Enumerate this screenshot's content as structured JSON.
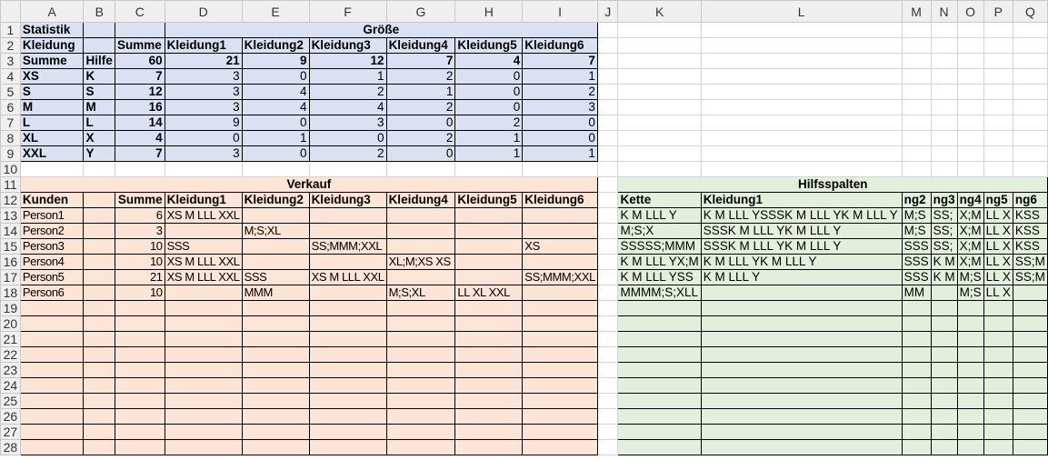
{
  "sheet": {
    "columns": [
      "A",
      "B",
      "C",
      "D",
      "E",
      "F",
      "G",
      "H",
      "I",
      "J",
      "K",
      "L",
      "M",
      "N",
      "O",
      "P",
      "Q"
    ],
    "row_numbers": [
      "1",
      "2",
      "3",
      "4",
      "5",
      "6",
      "7",
      "8",
      "9",
      "10",
      "11",
      "12",
      "13",
      "14",
      "15",
      "16",
      "17",
      "18",
      "19",
      "20",
      "21",
      "22",
      "23",
      "24",
      "25",
      "26",
      "27",
      "28"
    ],
    "colors": {
      "statistik_bg": "#D9E1F2",
      "verkauf_bg": "#FCE4D6",
      "hilfsspalten_bg": "#E2EFDA"
    },
    "rows": [
      [
        "Statistik",
        "",
        "",
        "Größe",
        "",
        "",
        "",
        "",
        "",
        "",
        "",
        "",
        "",
        "",
        "",
        "",
        ""
      ],
      [
        "Kleidung",
        "",
        "Summe",
        "Kleidung1",
        "Kleidung2",
        "Kleidung3",
        "Kleidung4",
        "Kleidung5",
        "Kleidung6",
        "",
        "",
        "",
        "",
        "",
        "",
        "",
        ""
      ],
      [
        "Summe",
        "Hilfe",
        "60",
        "21",
        "9",
        "12",
        "7",
        "4",
        "7",
        "",
        "",
        "",
        "",
        "",
        "",
        "",
        ""
      ],
      [
        "XS",
        "K",
        "7",
        "3",
        "0",
        "1",
        "2",
        "0",
        "1",
        "",
        "",
        "",
        "",
        "",
        "",
        "",
        ""
      ],
      [
        "S",
        "S",
        "12",
        "3",
        "4",
        "2",
        "1",
        "0",
        "2",
        "",
        "",
        "",
        "",
        "",
        "",
        "",
        ""
      ],
      [
        "M",
        "M",
        "16",
        "3",
        "4",
        "4",
        "2",
        "0",
        "3",
        "",
        "",
        "",
        "",
        "",
        "",
        "",
        ""
      ],
      [
        "L",
        "L",
        "14",
        "9",
        "0",
        "3",
        "0",
        "2",
        "0",
        "",
        "",
        "",
        "",
        "",
        "",
        "",
        ""
      ],
      [
        "XL",
        "X",
        "4",
        "0",
        "1",
        "0",
        "2",
        "1",
        "0",
        "",
        "",
        "",
        "",
        "",
        "",
        "",
        ""
      ],
      [
        "XXL",
        "Y",
        "7",
        "3",
        "0",
        "2",
        "0",
        "1",
        "1",
        "",
        "",
        "",
        "",
        "",
        "",
        "",
        ""
      ],
      [
        "",
        "",
        "",
        "",
        "",
        "",
        "",
        "",
        "",
        "",
        "",
        "",
        "",
        "",
        "",
        "",
        ""
      ],
      [
        "Verkauf",
        "",
        "",
        "",
        "",
        "",
        "",
        "",
        "",
        "",
        "Hilfsspalten",
        "",
        "",
        "",
        "",
        "",
        ""
      ],
      [
        "Kunden",
        "",
        "Summe",
        "Kleidung1",
        "Kleidung2",
        "Kleidung3",
        "Kleidung4",
        "Kleidung5",
        "Kleidung6",
        "",
        "Kette",
        "Kleidung1",
        "ng2",
        "ng3",
        "ng4",
        "ng5",
        "ng6"
      ],
      [
        "Person1",
        "",
        "6",
        "XS M LLL XXL",
        "",
        "",
        "",
        "",
        "",
        "",
        "K M LLL Y",
        "K M LLL YSSSK M LLL YK M LLL Y",
        "M;S",
        "SS;",
        "X;M",
        "LL X",
        "KSS"
      ],
      [
        "Person2",
        "",
        "3",
        "",
        "M;S;XL",
        "",
        "",
        "",
        "",
        "",
        "M;S;X",
        "SSSK M LLL YK M LLL Y",
        "M;S",
        "SS;",
        "X;M",
        "LL X",
        "KSS"
      ],
      [
        "Person3",
        "",
        "10",
        "SSS",
        "",
        "SS;MMM;XXL",
        "",
        "",
        "XS",
        "",
        "SSSSS;MMM",
        "SSSK M LLL YK M LLL Y",
        "SSS",
        "SS;",
        "X;M",
        "LL X",
        "KSS"
      ],
      [
        "Person4",
        "",
        "10",
        "XS M LLL XXL",
        "",
        "",
        "XL;M;XS XS",
        "",
        "",
        "",
        "K M LLL YX;M",
        "K M LLL YK M LLL Y",
        "SSS",
        "K M",
        "X;M",
        "LL X",
        "SS;M"
      ],
      [
        "Person5",
        "",
        "21",
        "XS M LLL XXL",
        "SSS",
        "XS M LLL XXL",
        "",
        "",
        "SS;MMM;XXL",
        "",
        "K M LLL YSS",
        "K M LLL Y",
        "SSS",
        "K M",
        "M;S",
        "LL X",
        "SS;M"
      ],
      [
        "Person6",
        "",
        "10",
        "",
        "MMM",
        "",
        "M;S;XL",
        "LL XL XXL",
        "",
        "",
        "MMMM;S;XLL",
        "",
        "MM",
        "",
        "M;S",
        "LL X",
        ""
      ],
      [
        "",
        "",
        "",
        "",
        "",
        "",
        "",
        "",
        "",
        "",
        "",
        "",
        "",
        "",
        "",
        "",
        ""
      ],
      [
        "",
        "",
        "",
        "",
        "",
        "",
        "",
        "",
        "",
        "",
        "",
        "",
        "",
        "",
        "",
        "",
        ""
      ],
      [
        "",
        "",
        "",
        "",
        "",
        "",
        "",
        "",
        "",
        "",
        "",
        "",
        "",
        "",
        "",
        "",
        ""
      ],
      [
        "",
        "",
        "",
        "",
        "",
        "",
        "",
        "",
        "",
        "",
        "",
        "",
        "",
        "",
        "",
        "",
        ""
      ],
      [
        "",
        "",
        "",
        "",
        "",
        "",
        "",
        "",
        "",
        "",
        "",
        "",
        "",
        "",
        "",
        "",
        ""
      ],
      [
        "",
        "",
        "",
        "",
        "",
        "",
        "",
        "",
        "",
        "",
        "",
        "",
        "",
        "",
        "",
        "",
        ""
      ],
      [
        "",
        "",
        "",
        "",
        "",
        "",
        "",
        "",
        "",
        "",
        "",
        "",
        "",
        "",
        "",
        "",
        ""
      ],
      [
        "",
        "",
        "",
        "",
        "",
        "",
        "",
        "",
        "",
        "",
        "",
        "",
        "",
        "",
        "",
        "",
        ""
      ],
      [
        "",
        "",
        "",
        "",
        "",
        "",
        "",
        "",
        "",
        "",
        "",
        "",
        "",
        "",
        "",
        "",
        ""
      ],
      [
        "",
        "",
        "",
        "",
        "",
        "",
        "",
        "",
        "",
        "",
        "",
        "",
        "",
        "",
        "",
        "",
        ""
      ]
    ]
  }
}
